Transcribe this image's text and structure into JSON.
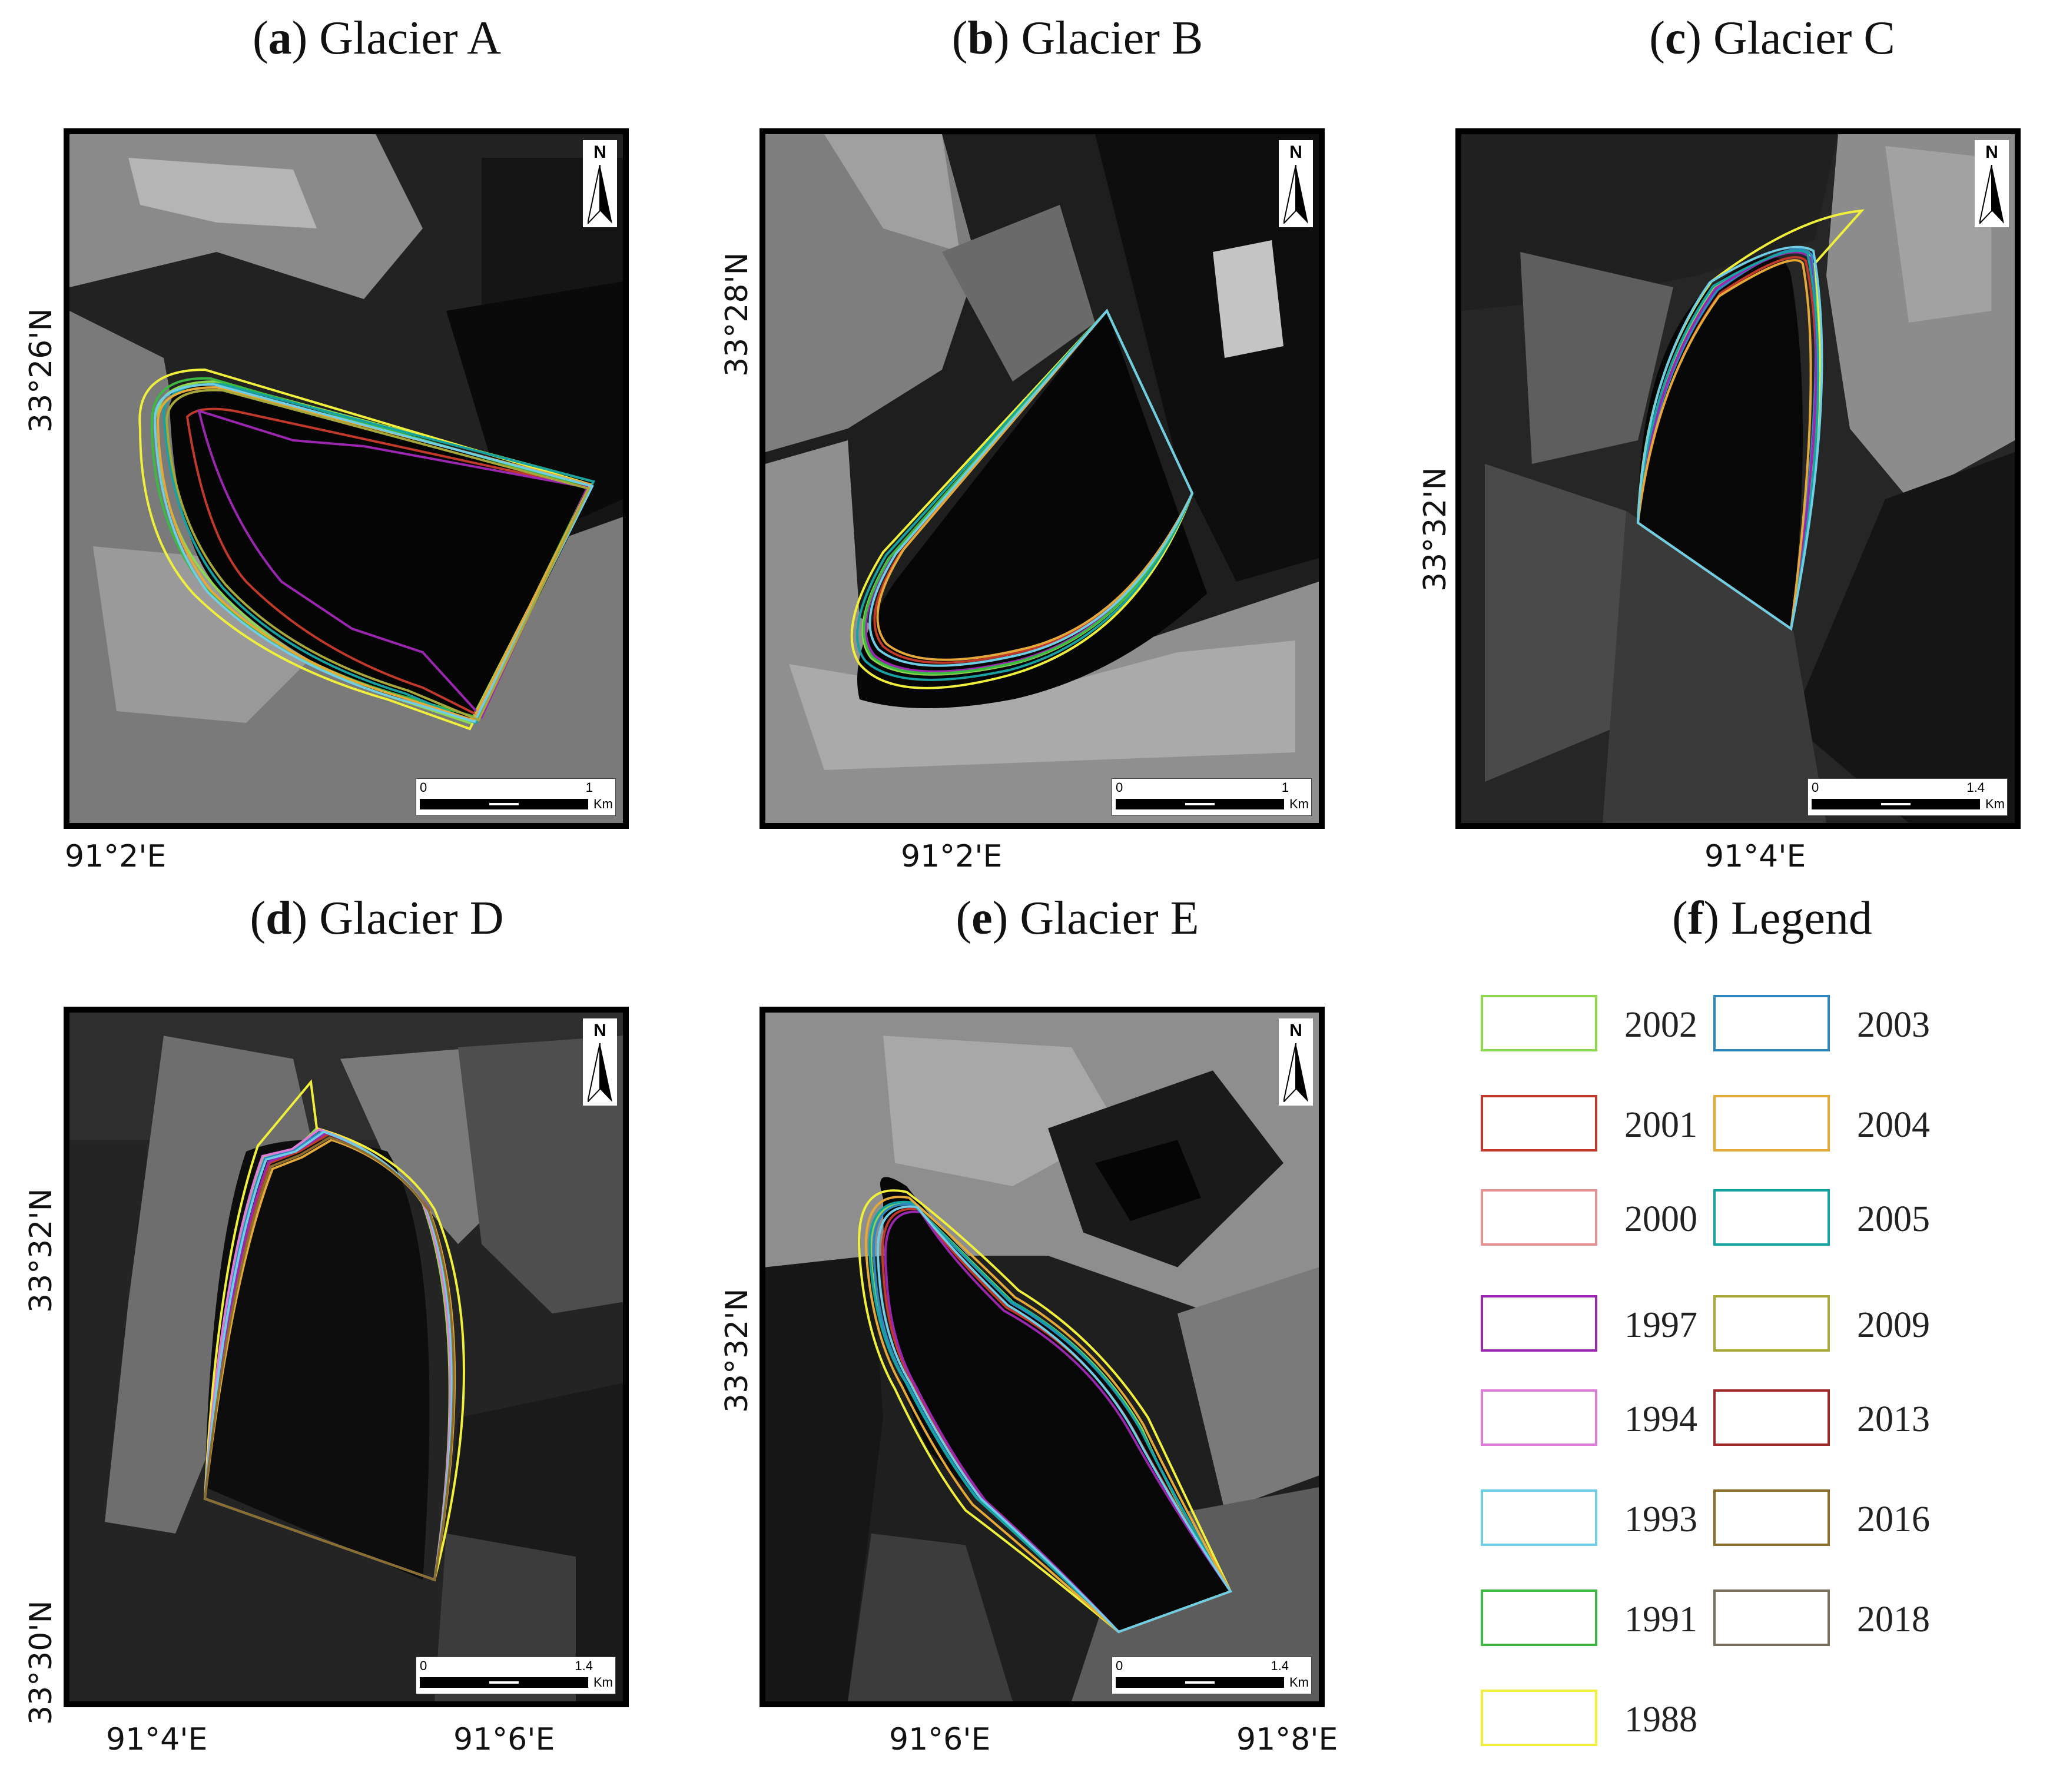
{
  "panels": [
    {
      "letter": "a",
      "title": " Glacier A",
      "lat_label": "33°26'N",
      "lon_labels": [
        "91°2'E"
      ],
      "scale": {
        "min": "0",
        "max": "1",
        "unit": "Km"
      }
    },
    {
      "letter": "b",
      "title": " Glacier B",
      "lat_label": "33°28'N",
      "lon_labels": [
        "91°2'E"
      ],
      "scale": {
        "min": "0",
        "max": "1",
        "unit": "Km"
      }
    },
    {
      "letter": "c",
      "title": " Glacier C",
      "lat_label": "33°32'N",
      "lon_labels": [
        "91°4'E"
      ],
      "scale": {
        "min": "0",
        "max": "1.4",
        "unit": "Km"
      }
    },
    {
      "letter": "d",
      "title": " Glacier D",
      "lat_labels": [
        "33°32'N",
        "33°30'N"
      ],
      "lon_labels": [
        "91°4'E",
        "91°6'E"
      ],
      "scale": {
        "min": "0",
        "max": "1.4",
        "unit": "Km"
      }
    },
    {
      "letter": "e",
      "title": " Glacier E",
      "lat_label": "33°32'N",
      "lon_labels": [
        "91°6'E",
        "91°8'E"
      ],
      "scale": {
        "min": "0",
        "max": "1.4",
        "unit": "Km"
      }
    }
  ],
  "north_label": "N",
  "legend": {
    "letter": "f",
    "title": " Legend",
    "items": [
      {
        "year": "2002",
        "color": "#8ed84f"
      },
      {
        "year": "2003",
        "color": "#2e86c1"
      },
      {
        "year": "2001",
        "color": "#c0392b"
      },
      {
        "year": "2004",
        "color": "#e5a93a"
      },
      {
        "year": "2000",
        "color": "#e89090"
      },
      {
        "year": "2005",
        "color": "#17a2a2"
      },
      {
        "year": "1997",
        "color": "#9b27b0"
      },
      {
        "year": "2009",
        "color": "#a8a83a"
      },
      {
        "year": "1994",
        "color": "#e07bd8"
      },
      {
        "year": "2013",
        "color": "#9e2a2a"
      },
      {
        "year": "1993",
        "color": "#6fcde6"
      },
      {
        "year": "2016",
        "color": "#8a6d2f"
      },
      {
        "year": "1991",
        "color": "#3cb843"
      },
      {
        "year": "2018",
        "color": "#7a6e5d"
      },
      {
        "year": "1988",
        "color": "#f0f03c"
      }
    ]
  }
}
